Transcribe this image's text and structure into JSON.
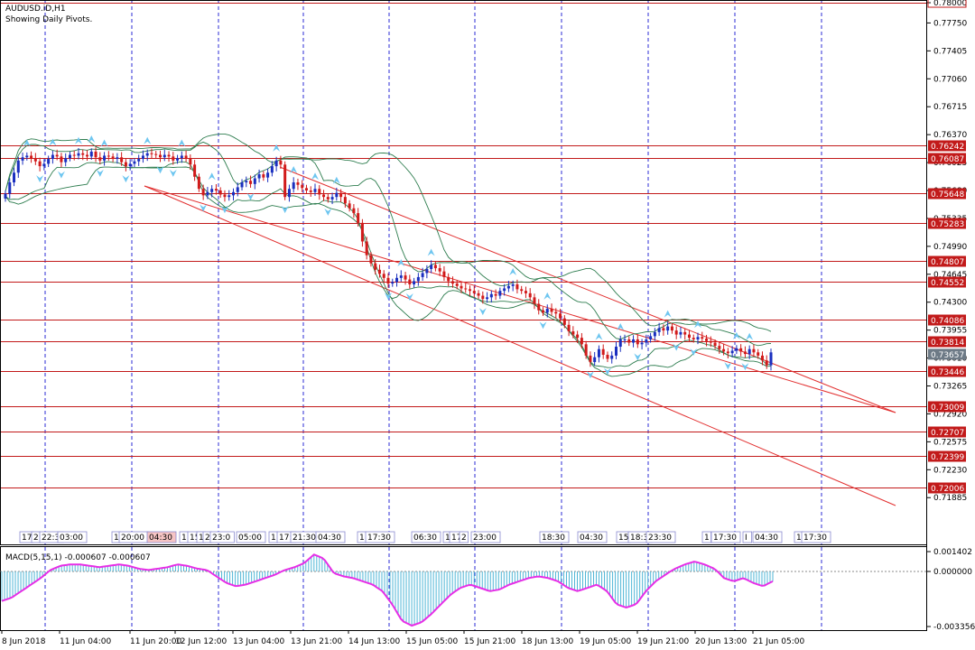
{
  "header": {
    "symbol_line": "AUDUSD.iD,H1",
    "subtitle": "Showing Daily Pivots."
  },
  "macd": {
    "label": "MACD(5,15,1) -0.000607 -0.000607",
    "scale_top": "0.001402",
    "scale_zero": "0.000000",
    "scale_bottom": "-0.003356",
    "values": [
      -0.0018,
      -0.0016,
      -0.0012,
      -0.0008,
      -0.0004,
      0.0001,
      0.0004,
      0.0005,
      0.0005,
      0.0004,
      0.0003,
      0.0004,
      0.0005,
      0.0004,
      0.0002,
      0.0001,
      0.0002,
      0.0003,
      0.0005,
      0.0004,
      0.0002,
      0.0001,
      -0.0003,
      -0.0007,
      -0.0009,
      -0.0008,
      -0.0006,
      -0.0004,
      -0.0002,
      0.0001,
      0.0003,
      0.0006,
      0.0012,
      0.0009,
      -0.0001,
      -0.0003,
      -0.0004,
      -0.0006,
      -0.0008,
      -0.0012,
      -0.002,
      -0.003,
      -0.0033,
      -0.0031,
      -0.0026,
      -0.002,
      -0.0014,
      -0.001,
      -0.0008,
      -0.001,
      -0.0012,
      -0.0011,
      -0.0008,
      -0.0006,
      -0.0004,
      -0.0003,
      -0.0004,
      -0.0006,
      -0.001,
      -0.0012,
      -0.001,
      -0.0008,
      -0.0012,
      -0.002,
      -0.0022,
      -0.002,
      -0.0012,
      -0.0006,
      -0.0002,
      0.0002,
      0.0005,
      0.0007,
      0.0005,
      0.0002,
      -0.0004,
      -0.0006,
      -0.0004,
      -0.0007,
      -0.0009,
      -0.0006
    ]
  },
  "chart_data": {
    "type": "candlestick",
    "price_axis": {
      "min": 0.7162,
      "max": 0.78,
      "tick_labels": [
        "0.78000",
        "0.77750",
        "0.77405",
        "0.77060",
        "0.76715",
        "0.76370",
        "0.76025",
        "0.75680",
        "0.75335",
        "0.74990",
        "0.74645",
        "0.74300",
        "0.73955",
        "0.73610",
        "0.73265",
        "0.72920",
        "0.72575",
        "0.72230",
        "0.71885"
      ]
    },
    "pivot_levels": [
      "0.76242",
      "0.76087",
      "0.75648",
      "0.75283",
      "0.74807",
      "0.74552",
      "0.74086",
      "0.73814",
      "0.73446",
      "0.73009",
      "0.72707",
      "0.72399",
      "0.72006"
    ],
    "current_price": "0.73657",
    "date_labels": [
      "8 Jun 2018",
      "11 Jun 04:00",
      "11 Jun 20:00",
      "12 Jun 12:00",
      "13 Jun 04:00",
      "13 Jun 21:00",
      "14 Jun 13:00",
      "15 Jun 05:00",
      "15 Jun 21:00",
      "18 Jun 13:00",
      "19 Jun 05:00",
      "19 Jun 21:00",
      "20 Jun 13:00",
      "21 Jun 05:00"
    ],
    "session_labels": [
      "17",
      "2",
      "22:3",
      "03:00",
      "1",
      "20:00",
      "04:30",
      "1",
      "15",
      "1",
      "2",
      "23:0",
      "05:00",
      "1",
      "17:",
      "21:30",
      "04:30",
      "1",
      "17:30",
      "06:30",
      "1",
      "17",
      "2",
      "23:00",
      "18:30",
      "04:30",
      "15",
      "18:3",
      "23:30",
      "1",
      "17:30",
      "I",
      "04:30",
      "1",
      "17:30"
    ],
    "session_flags": [
      "",
      "",
      "",
      "",
      "",
      "",
      "pink",
      "",
      "",
      "",
      "",
      "",
      "",
      "",
      "",
      "",
      "",
      "",
      "",
      "",
      "",
      "",
      "",
      "",
      "",
      "",
      "",
      "",
      "",
      "",
      "",
      "",
      "",
      "",
      ""
    ],
    "close": [
      0.7564,
      0.7578,
      0.759,
      0.7605,
      0.7609,
      0.7611,
      0.7608,
      0.7604,
      0.7598,
      0.7601,
      0.7607,
      0.7612,
      0.761,
      0.7603,
      0.7608,
      0.7612,
      0.7611,
      0.7614,
      0.7612,
      0.761,
      0.7616,
      0.7609,
      0.7605,
      0.7611,
      0.761,
      0.7607,
      0.7609,
      0.7603,
      0.7598,
      0.7601,
      0.7604,
      0.7607,
      0.7611,
      0.7614,
      0.7613,
      0.7612,
      0.7609,
      0.7612,
      0.761,
      0.7605,
      0.7608,
      0.7611,
      0.7608,
      0.76,
      0.7585,
      0.757,
      0.7562,
      0.7566,
      0.757,
      0.7568,
      0.7563,
      0.756,
      0.7562,
      0.7566,
      0.7572,
      0.7578,
      0.758,
      0.7576,
      0.7583,
      0.7588,
      0.7584,
      0.759,
      0.7598,
      0.7605,
      0.76,
      0.756,
      0.757,
      0.7578,
      0.7575,
      0.7571,
      0.7568,
      0.7566,
      0.757,
      0.7563,
      0.756,
      0.7557,
      0.756,
      0.7565,
      0.756,
      0.7552,
      0.7546,
      0.754,
      0.7528,
      0.7505,
      0.7488,
      0.7478,
      0.747,
      0.7465,
      0.746,
      0.7453,
      0.7455,
      0.746,
      0.7463,
      0.7458,
      0.7452,
      0.7456,
      0.7461,
      0.7466,
      0.7471,
      0.7476,
      0.7472,
      0.7468,
      0.7461,
      0.7456,
      0.7453,
      0.745,
      0.7447,
      0.7446,
      0.7444,
      0.7441,
      0.7438,
      0.7434,
      0.7436,
      0.744,
      0.7438,
      0.7444,
      0.7447,
      0.745,
      0.7452,
      0.7446,
      0.7444,
      0.7441,
      0.7436,
      0.7428,
      0.742,
      0.7417,
      0.7422,
      0.7418,
      0.7416,
      0.741,
      0.7402,
      0.7394,
      0.739,
      0.7386,
      0.7378,
      0.7364,
      0.7356,
      0.7362,
      0.7372,
      0.7365,
      0.736,
      0.7364,
      0.7375,
      0.7384,
      0.7384,
      0.738,
      0.7384,
      0.7378,
      0.738,
      0.7384,
      0.7388,
      0.7393,
      0.7398,
      0.7395,
      0.74,
      0.7395,
      0.739,
      0.7393,
      0.739,
      0.7386,
      0.7384,
      0.7387,
      0.7385,
      0.7382,
      0.738,
      0.7376,
      0.7372,
      0.7369,
      0.7367,
      0.737,
      0.7373,
      0.7369,
      0.7366,
      0.7372,
      0.7368,
      0.7364,
      0.7358,
      0.7352,
      0.7368
    ]
  }
}
